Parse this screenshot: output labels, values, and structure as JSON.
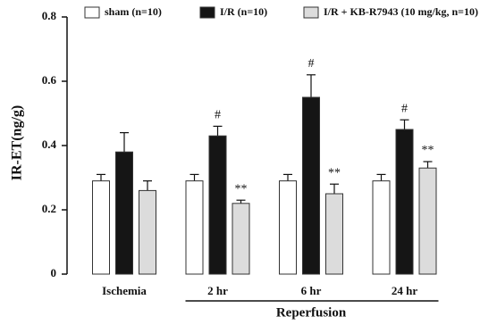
{
  "chart_data": {
    "type": "bar",
    "y_label": "IR-ET(ng/g)",
    "categories": [
      "Ischemia",
      "2 hr",
      "6 hr",
      "24 hr"
    ],
    "group_label": "Reperfusion",
    "ylim": [
      0,
      0.8
    ],
    "yticks": [
      0,
      0.2,
      0.4,
      0.6,
      0.8
    ],
    "legend": "top",
    "series": [
      {
        "name": "sham (n=10)",
        "color": "#ffffff",
        "values": [
          0.29,
          0.29,
          0.29,
          0.29
        ],
        "errors": [
          0.02,
          0.02,
          0.02,
          0.02
        ],
        "labels": [
          null,
          null,
          null,
          null
        ]
      },
      {
        "name": "I/R (n=10)",
        "color": "#151515",
        "values": [
          0.38,
          0.43,
          0.55,
          0.45
        ],
        "errors": [
          0.06,
          0.03,
          0.07,
          0.03
        ],
        "labels": [
          null,
          "#",
          "#",
          "#"
        ]
      },
      {
        "name": "I/R + KB-R7943 (10 mg/kg, n=10)",
        "color": "#dcdcdc",
        "values": [
          0.26,
          0.22,
          0.25,
          0.33
        ],
        "errors": [
          0.03,
          0.01,
          0.03,
          0.02
        ],
        "labels": [
          null,
          "**",
          "**",
          "**"
        ]
      }
    ]
  }
}
